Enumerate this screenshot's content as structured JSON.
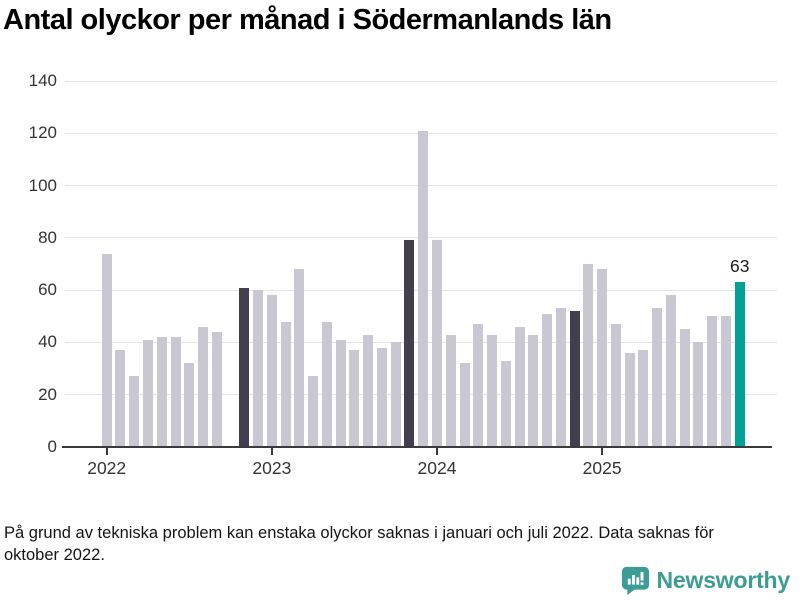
{
  "title": "Antal olyckor per månad i Södermanlands län",
  "footnote": "På grund av tekniska problem kan enstaka olyckor saknas i januari och juli 2022. Data saknas för oktober 2022.",
  "logo": {
    "text": "Newsworthy",
    "icon": "newsworthy-speech-bubble-chart-icon",
    "color": "#3d9c95"
  },
  "colors": {
    "bar_default": "#c9c8d2",
    "bar_highlight_dark": "#423e4e",
    "bar_current": "#00a296",
    "grid": "#e4e4e8",
    "axis": "#3a3a3a",
    "tick_text": "#333333"
  },
  "chart_data": {
    "type": "bar",
    "title": "Antal olyckor per månad i Södermanlands län",
    "xlabel": "",
    "ylabel": "",
    "ylim": [
      0,
      140
    ],
    "yticks": [
      0,
      20,
      40,
      60,
      80,
      100,
      120,
      140
    ],
    "grid": true,
    "legend": false,
    "categories": [
      "2022-01",
      "2022-02",
      "2022-03",
      "2022-04",
      "2022-05",
      "2022-06",
      "2022-07",
      "2022-08",
      "2022-09",
      "2022-10",
      "2022-11",
      "2022-12",
      "2023-01",
      "2023-02",
      "2023-03",
      "2023-04",
      "2023-05",
      "2023-06",
      "2023-07",
      "2023-08",
      "2023-09",
      "2023-10",
      "2023-11",
      "2023-12",
      "2024-01",
      "2024-02",
      "2024-03",
      "2024-04",
      "2024-05",
      "2024-06",
      "2024-07",
      "2024-08",
      "2024-09",
      "2024-10",
      "2024-11",
      "2024-12",
      "2025-01",
      "2025-02",
      "2025-03",
      "2025-04",
      "2025-05",
      "2025-06",
      "2025-07",
      "2025-08",
      "2025-09",
      "2025-10",
      "2025-11"
    ],
    "values": [
      74,
      37,
      27,
      41,
      42,
      42,
      32,
      46,
      44,
      null,
      61,
      60,
      58,
      48,
      68,
      27,
      48,
      41,
      37,
      43,
      38,
      40,
      79,
      121,
      79,
      43,
      32,
      47,
      43,
      33,
      46,
      43,
      51,
      53,
      52,
      70,
      68,
      47,
      36,
      37,
      53,
      58,
      45,
      40,
      50,
      50,
      63
    ],
    "missing_months": [
      "2022-10"
    ],
    "highlight_dark_indices": [
      10,
      22,
      34
    ],
    "current_index": 46,
    "current_label": "63",
    "year_ticks": [
      {
        "label": "2022",
        "month_index": 0
      },
      {
        "label": "2023",
        "month_index": 12
      },
      {
        "label": "2024",
        "month_index": 24
      },
      {
        "label": "2025",
        "month_index": 36
      }
    ]
  }
}
